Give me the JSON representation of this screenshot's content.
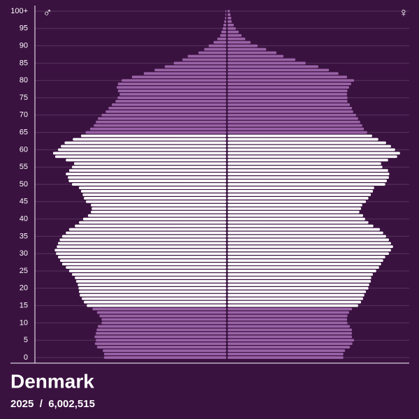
{
  "chart_data": {
    "type": "pyramid",
    "title": "Denmark",
    "subtitle": "2025  /  6,002,515",
    "categories": [
      "0",
      null,
      null,
      null,
      null,
      "5",
      null,
      null,
      null,
      null,
      "10",
      null,
      null,
      null,
      null,
      "15",
      null,
      null,
      null,
      null,
      "20",
      null,
      null,
      null,
      null,
      "25",
      null,
      null,
      null,
      null,
      "30",
      null,
      null,
      null,
      null,
      "35",
      null,
      null,
      null,
      null,
      "40",
      null,
      null,
      null,
      null,
      "45",
      null,
      null,
      null,
      null,
      "50",
      null,
      null,
      null,
      null,
      "55",
      null,
      null,
      null,
      null,
      "60",
      null,
      null,
      null,
      null,
      "65",
      null,
      null,
      null,
      null,
      "70",
      null,
      null,
      null,
      null,
      "75",
      null,
      null,
      null,
      null,
      "80",
      null,
      null,
      null,
      null,
      "85",
      null,
      null,
      null,
      null,
      "90",
      null,
      null,
      null,
      null,
      "95",
      null,
      null,
      null,
      null,
      "100+"
    ],
    "series": [
      {
        "name": "♂",
        "color": "#9a63a6",
        "values": [
          29800,
          29800,
          30100,
          31500,
          32000,
          31800,
          32100,
          31800,
          31600,
          31300,
          30400,
          30400,
          30900,
          31500,
          32600,
          34000,
          34700,
          35200,
          35700,
          35900,
          36000,
          36200,
          36600,
          36900,
          37600,
          38300,
          39100,
          40000,
          40500,
          41000,
          41500,
          41800,
          41300,
          41000,
          40600,
          40000,
          39100,
          38300,
          36900,
          35900,
          34900,
          33700,
          33000,
          32800,
          33000,
          34200,
          34700,
          35000,
          35400,
          35900,
          37600,
          38400,
          38600,
          39100,
          38300,
          37600,
          37100,
          39100,
          41700,
          42200,
          41000,
          40300,
          39400,
          37400,
          35400,
          34300,
          33200,
          32300,
          31800,
          31300,
          30400,
          29400,
          28700,
          27900,
          27000,
          26500,
          26000,
          26400,
          26700,
          26400,
          25500,
          23000,
          20100,
          17500,
          15000,
          12800,
          10700,
          9400,
          6800,
          5400,
          4300,
          3100,
          2200,
          1500,
          1200,
          900,
          700,
          500,
          300,
          200,
          200
        ]
      },
      {
        "name": "♀",
        "color": "#9a63a6",
        "values": [
          28200,
          28200,
          28600,
          29800,
          30400,
          30800,
          30300,
          30300,
          30300,
          29800,
          29200,
          29100,
          29200,
          29600,
          30300,
          31800,
          32500,
          33000,
          33300,
          33700,
          34300,
          34500,
          34900,
          35000,
          35400,
          36200,
          36900,
          37400,
          37900,
          38400,
          39300,
          39800,
          40300,
          39800,
          39300,
          38600,
          37900,
          37100,
          35500,
          34300,
          33500,
          33000,
          32100,
          32500,
          32800,
          33700,
          34300,
          34900,
          35400,
          35700,
          38400,
          38800,
          39300,
          39400,
          39100,
          37700,
          37400,
          39100,
          41300,
          42000,
          40800,
          39800,
          38600,
          36700,
          35200,
          34000,
          33200,
          32800,
          32300,
          31800,
          31300,
          30600,
          30300,
          29800,
          29200,
          29200,
          29100,
          29200,
          29600,
          30100,
          30800,
          29100,
          27000,
          24700,
          22100,
          19000,
          16500,
          13600,
          11900,
          9400,
          7300,
          5600,
          4300,
          3400,
          2700,
          2000,
          1500,
          1000,
          900,
          700,
          500
        ]
      }
    ],
    "working_ages": [
      15,
      64
    ],
    "working_age_color": "#ffffff",
    "grid": true
  }
}
